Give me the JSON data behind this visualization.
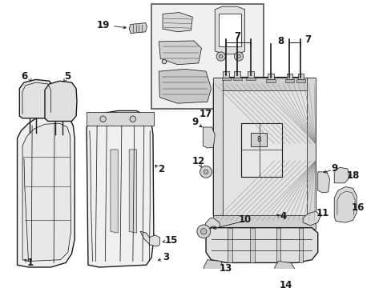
{
  "background_color": "#ffffff",
  "line_color": "#1a1a1a",
  "fig_width": 4.89,
  "fig_height": 3.6,
  "dpi": 100,
  "label_fontsize": 8.5,
  "lw_main": 1.0,
  "lw_thin": 0.55,
  "gray_fill": "#e8e8e8",
  "gray_mid": "#d0d0d0",
  "gray_dark": "#b8b8b8",
  "white_fill": "#ffffff",
  "inset_fill": "#f0f0f0"
}
